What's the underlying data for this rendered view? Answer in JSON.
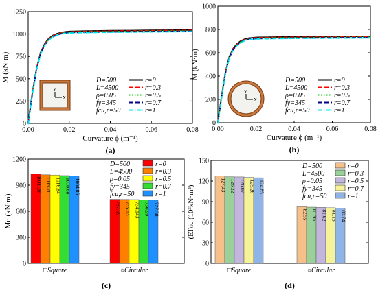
{
  "chart_data": [
    {
      "type": "line",
      "panel_label": "(a)",
      "xlabel": "Curvature ϕ (m⁻¹)",
      "ylabel": "M (kN·m)",
      "xlim": [
        0,
        0.08
      ],
      "ylim": [
        0,
        1250
      ],
      "xticks": [
        "0.00",
        "0.02",
        "0.04",
        "0.06",
        "0.08"
      ],
      "yticks": [
        "0",
        "250",
        "500",
        "750",
        "1000",
        "1250"
      ],
      "params": [
        "D=500",
        "L=4500",
        "ρ=0.05",
        "fy=345",
        "fcu,r=50"
      ],
      "series": [
        {
          "name": "r=0",
          "color": "#000000",
          "dash": "solid"
        },
        {
          "name": "r=0.3",
          "color": "#ff0000",
          "dash": "dash"
        },
        {
          "name": "r=0.5",
          "color": "#00cc00",
          "dash": "dot"
        },
        {
          "name": "r=0.7",
          "color": "#00008b",
          "dash": "dash"
        },
        {
          "name": "r=1",
          "color": "#00e5ee",
          "dash": "dashdot"
        }
      ],
      "curve_x": [
        0,
        0.002,
        0.004,
        0.006,
        0.008,
        0.01,
        0.012,
        0.014,
        0.016,
        0.018,
        0.02,
        0.03,
        0.04,
        0.05,
        0.06,
        0.07,
        0.08
      ],
      "curve_y": [
        0,
        330,
        600,
        780,
        880,
        940,
        975,
        995,
        1008,
        1015,
        1020,
        1025,
        1028,
        1030,
        1032,
        1034,
        1036
      ],
      "inset": "square"
    },
    {
      "type": "line",
      "panel_label": "(b)",
      "xlabel": "Curvature ϕ (m⁻¹)",
      "ylabel": "M (kN·m)",
      "xlim": [
        0,
        0.08
      ],
      "ylim": [
        0,
        1000
      ],
      "xticks": [
        "0.00",
        "0.02",
        "0.04",
        "0.06",
        "0.08"
      ],
      "yticks": [
        "0",
        "200",
        "400",
        "600",
        "800",
        "1000"
      ],
      "params": [
        "D=500",
        "L=4500",
        "ρ=0.05",
        "fy=345",
        "fcu,r=50"
      ],
      "series": [
        {
          "name": "r=0",
          "color": "#000000",
          "dash": "solid"
        },
        {
          "name": "r=0.3",
          "color": "#ff0000",
          "dash": "dash"
        },
        {
          "name": "r=0.5",
          "color": "#00cc00",
          "dash": "dot"
        },
        {
          "name": "r=0.7",
          "color": "#00008b",
          "dash": "dash"
        },
        {
          "name": "r=1",
          "color": "#00e5ee",
          "dash": "dashdot"
        }
      ],
      "curve_x": [
        0,
        0.002,
        0.004,
        0.006,
        0.008,
        0.01,
        0.012,
        0.014,
        0.016,
        0.018,
        0.02,
        0.03,
        0.04,
        0.05,
        0.06,
        0.07,
        0.08
      ],
      "curve_y": [
        0,
        230,
        430,
        560,
        630,
        670,
        695,
        710,
        718,
        722,
        725,
        728,
        730,
        731,
        732,
        733,
        734
      ],
      "inset": "circular"
    },
    {
      "type": "bar",
      "panel_label": "(c)",
      "ylabel": "Mu (kN·m)",
      "ylim": [
        0,
        1200
      ],
      "yticks": [
        "0",
        "300",
        "600",
        "900",
        "1200"
      ],
      "categories": [
        "□Square",
        "○Circular"
      ],
      "params": [
        "D=500",
        "L=4500",
        "ρ=0.05",
        "fy=345",
        "fcu,r=50"
      ],
      "series": [
        {
          "name": "r=0",
          "color": "#ff0000",
          "values": [
            1031.28,
            737.69
          ]
        },
        {
          "name": "r=0.3",
          "color": "#ff7f00",
          "values": [
            1019.76,
            735.63
          ]
        },
        {
          "name": "r=0.5",
          "color": "#ffff00",
          "values": [
            1016.84,
            734.143
          ]
        },
        {
          "name": "r=0.7",
          "color": "#33dd33",
          "values": [
            1010.68,
            730.99
          ]
        },
        {
          "name": "r=1",
          "color": "#1e90ff",
          "values": [
            1004.85,
            727.58
          ]
        }
      ],
      "value_labels": [
        [
          "1031.28",
          "1019.76",
          "1016.84",
          "1010.68",
          "1004.85"
        ],
        [
          "737.69",
          "735.63",
          "734.143",
          "730.99",
          "727.58"
        ]
      ]
    },
    {
      "type": "bar",
      "panel_label": "(d)",
      "ylabel": "(EI)ic (10³kN·m²)",
      "ylim": [
        0,
        150
      ],
      "yticks": [
        "0",
        "30",
        "60",
        "90",
        "120",
        "150"
      ],
      "categories": [
        "□Square",
        "○Circular"
      ],
      "params": [
        "D=500",
        "L=4500",
        "ρ=0.05",
        "fy=345",
        "fcu,r=50"
      ],
      "series": [
        {
          "name": "r=0",
          "color": "#f5c08a",
          "values": [
            127.43,
            82.55
          ]
        },
        {
          "name": "r=0.3",
          "color": "#9ad19a",
          "values": [
            126.22,
            81.95
          ]
        },
        {
          "name": "r=0.5",
          "color": "#c3b6dc",
          "values": [
            126.07,
            81.62
          ]
        },
        {
          "name": "r=0.7",
          "color": "#f6f29a",
          "values": [
            125.26,
            81.13
          ]
        },
        {
          "name": "r=1",
          "color": "#8fb4e8",
          "values": [
            124.85,
            80.74
          ]
        }
      ],
      "value_labels": [
        [
          "127.43",
          "126.22",
          "126.07",
          "125.26",
          "124.85"
        ],
        [
          "82.55",
          "81.95",
          "81.62",
          "81.13",
          "80.74"
        ]
      ]
    }
  ]
}
